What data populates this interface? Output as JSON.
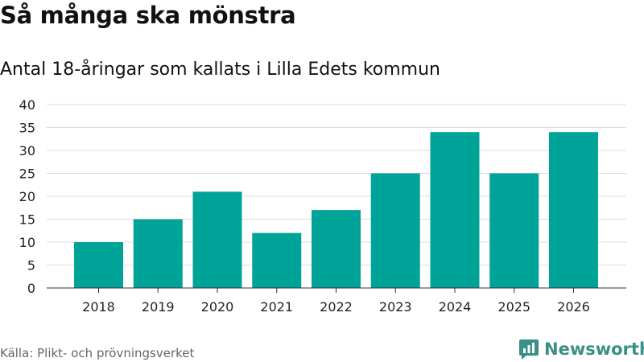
{
  "title": "Så många ska mönstra",
  "subtitle": "Antal 18-åringar som kallats i Lilla Edets kommun",
  "source": "Källa: Plikt- och prövningsverket",
  "brand": {
    "name": "Newsworthy",
    "color": "#3a8f86"
  },
  "colors": {
    "bar": "#00a398",
    "grid": "#dddddd",
    "axis": "#333333"
  },
  "chart_data": {
    "type": "bar",
    "title": "Så många ska mönstra",
    "subtitle": "Antal 18-åringar som kallats i Lilla Edets kommun",
    "xlabel": "",
    "ylabel": "",
    "categories": [
      "2018",
      "2019",
      "2020",
      "2021",
      "2022",
      "2023",
      "2024",
      "2025",
      "2026"
    ],
    "values": [
      10,
      15,
      21,
      12,
      17,
      25,
      34,
      25,
      34
    ],
    "ylim": [
      0,
      40
    ],
    "yticks": [
      0,
      5,
      10,
      15,
      20,
      25,
      30,
      35,
      40
    ],
    "grid": true,
    "legend": "none"
  }
}
